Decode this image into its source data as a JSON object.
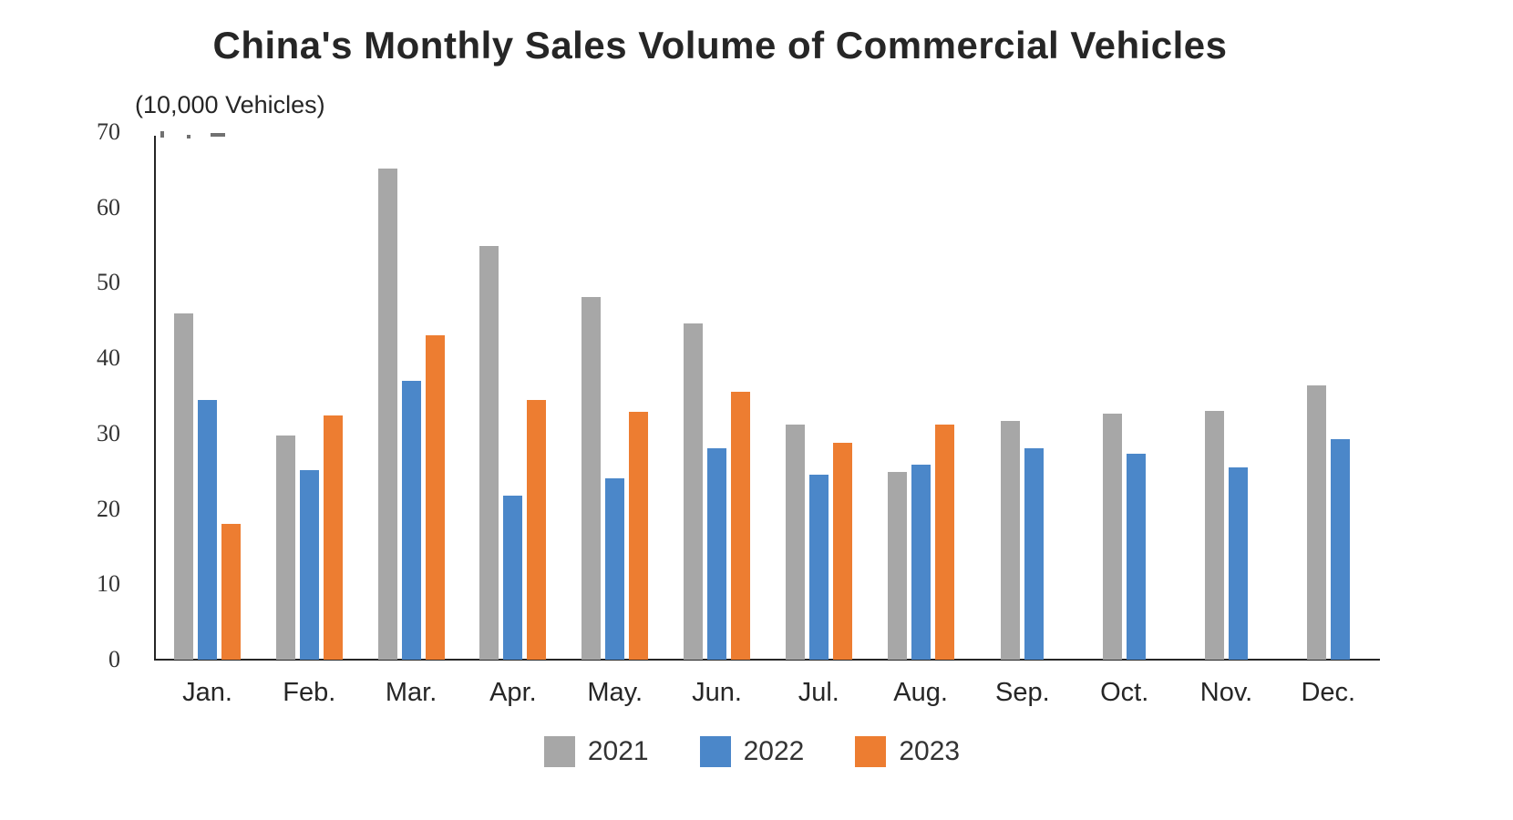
{
  "page": {
    "background_color": "#ffffff"
  },
  "chart_data": {
    "type": "bar",
    "title": "China's Monthly Sales Volume of Commercial Vehicles",
    "unit_label": "(10,000 Vehicles)",
    "categories": [
      "Jan.",
      "Feb.",
      "Mar.",
      "Apr.",
      "May.",
      "Jun.",
      "Jul.",
      "Aug.",
      "Sep.",
      "Oct.",
      "Nov.",
      "Dec."
    ],
    "series": [
      {
        "name": "2021",
        "color": "#A7A7A7",
        "values": [
          45.9,
          29.8,
          65.2,
          54.9,
          48.1,
          44.6,
          31.2,
          24.9,
          31.7,
          32.6,
          33.0,
          36.4
        ]
      },
      {
        "name": "2022",
        "color": "#4B87C9",
        "values": [
          34.5,
          25.2,
          37.0,
          21.8,
          24.1,
          28.1,
          24.6,
          25.9,
          28.0,
          27.3,
          25.5,
          29.2
        ]
      },
      {
        "name": "2023",
        "color": "#ED7D31",
        "values": [
          18.0,
          32.4,
          43.1,
          34.5,
          32.9,
          35.5,
          28.8,
          31.2,
          null,
          null,
          null,
          null
        ]
      }
    ],
    "y_axis": {
      "min": 0,
      "max": 70,
      "tick_step": 10,
      "ticks": [
        70,
        60,
        50,
        40,
        30,
        20,
        10,
        0
      ]
    },
    "x_axis": {
      "label": ""
    },
    "grid": false,
    "legend_position": "bottom"
  },
  "legend": {
    "items": [
      {
        "label": "2021",
        "color": "#A7A7A7"
      },
      {
        "label": "2022",
        "color": "#4B87C9"
      },
      {
        "label": "2023",
        "color": "#ED7D31"
      }
    ]
  }
}
